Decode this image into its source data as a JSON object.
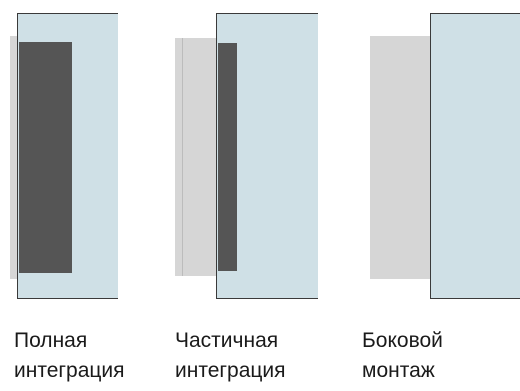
{
  "colors": {
    "panel_light": "#cfe0e6",
    "panel_dark": "#555555",
    "panel_gray": "#d6d6d6",
    "outline": "#3a3a3a"
  },
  "diagrams": [
    {
      "name": "full-integration",
      "label_line1": "Полная",
      "label_line2": "интеграция"
    },
    {
      "name": "partial-integration",
      "label_line1": "Частичная",
      "label_line2": "интеграция"
    },
    {
      "name": "side-mount",
      "label_line1": "Боковой",
      "label_line2": "монтаж"
    }
  ]
}
